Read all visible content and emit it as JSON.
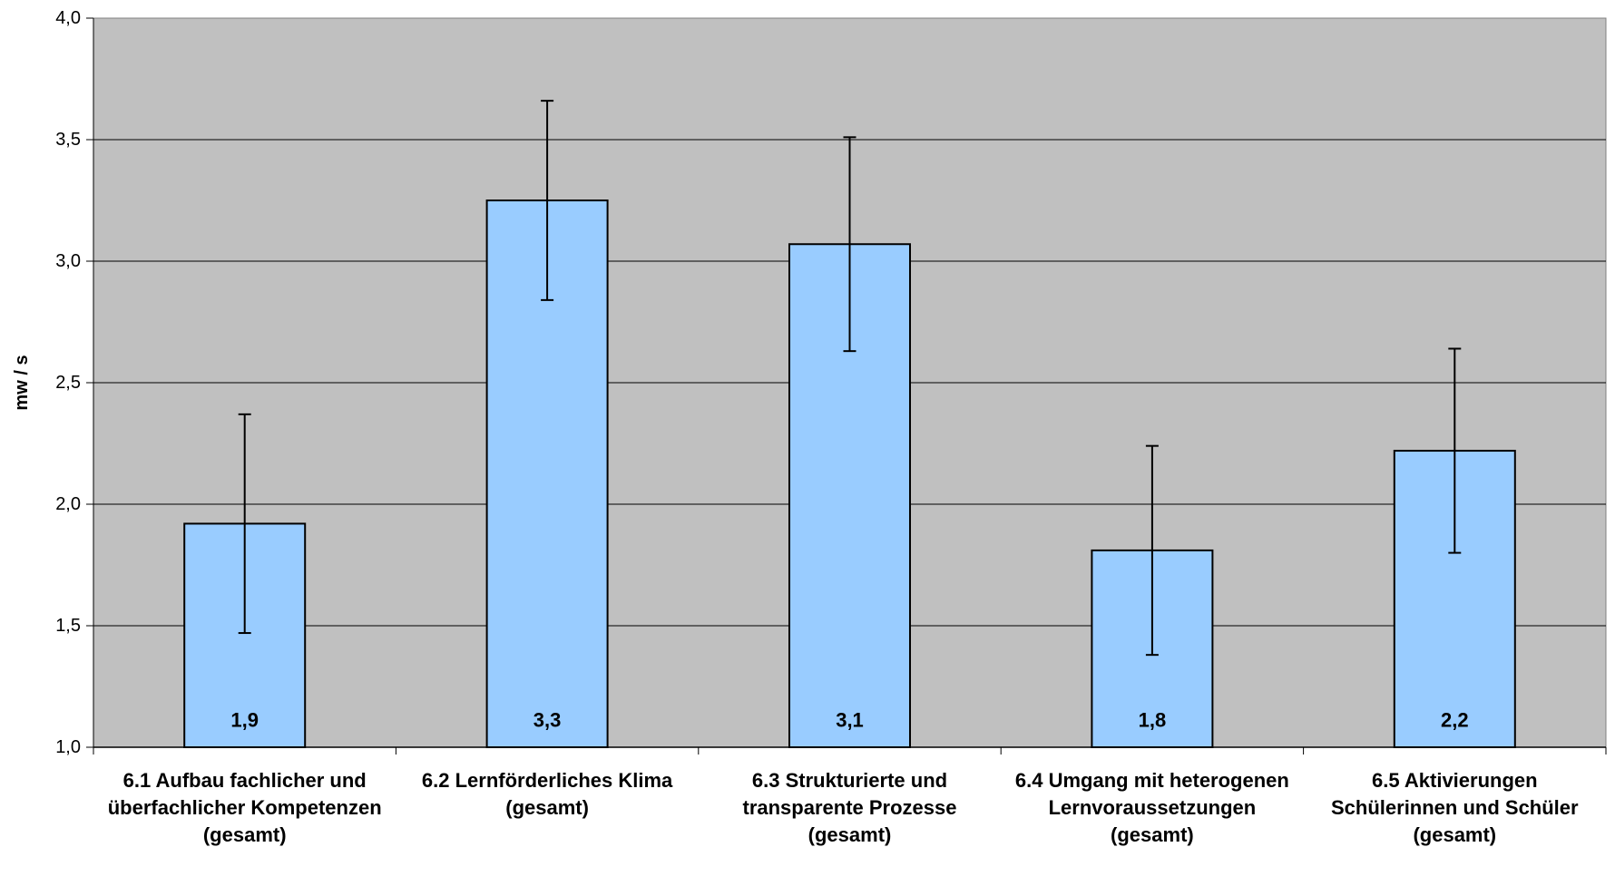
{
  "chart_data": {
    "type": "bar",
    "ylabel": "mw / s",
    "ylim": [
      1.0,
      4.0
    ],
    "yticks": [
      1.0,
      1.5,
      2.0,
      2.5,
      3.0,
      3.5,
      4.0
    ],
    "ytick_labels": [
      "1,0",
      "1,5",
      "2,0",
      "2,5",
      "3,0",
      "3,5",
      "4,0"
    ],
    "grid": "horizontal",
    "categories": [
      "6.1 Aufbau fachlicher und überfachlicher Kompetenzen (gesamt)",
      "6.2 Lernförderliches Klima (gesamt)",
      "6.3 Strukturierte und transparente Prozesse (gesamt)",
      "6.4 Umgang mit heterogenen Lernvoraussetzungen (gesamt)",
      "6.5 Aktivierungen Schülerinnen und Schüler (gesamt)"
    ],
    "values": [
      1.92,
      3.25,
      3.07,
      1.81,
      2.22
    ],
    "value_labels": [
      "1,9",
      "3,3",
      "3,1",
      "1,8",
      "2,2"
    ],
    "error": [
      0.45,
      0.41,
      0.44,
      0.43,
      0.42
    ],
    "colors": {
      "bar_fill": "#99ccff",
      "bar_stroke": "#000000",
      "plot_background": "#c0c0c0",
      "gridline": "#000000"
    }
  }
}
